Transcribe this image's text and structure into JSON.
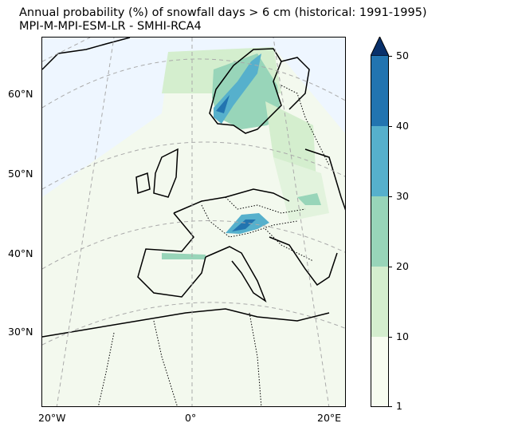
{
  "title": {
    "line1": "Annual probability (%) of snowfall days > 6 cm (historical: 1991-1995)",
    "line2": "MPI-M-MPI-ESM-LR - SMHI-RCA4"
  },
  "map": {
    "region": "Europe",
    "projection": "Lambert conformal",
    "gridlines": "dashed",
    "lat_labels": [
      "60°N",
      "50°N",
      "40°N",
      "30°N"
    ],
    "lon_labels": [
      "20°W",
      "0°",
      "20°E"
    ]
  },
  "colorbar": {
    "ticks": [
      "50",
      "40",
      "30",
      "20",
      "10",
      "1"
    ],
    "levels": [
      1,
      10,
      20,
      30,
      40,
      50
    ],
    "colors": [
      "#f7fcf0",
      "#d4eece",
      "#98d5b9",
      "#56b0cc",
      "#2274b0",
      "#08306b"
    ],
    "extend": "max"
  }
}
